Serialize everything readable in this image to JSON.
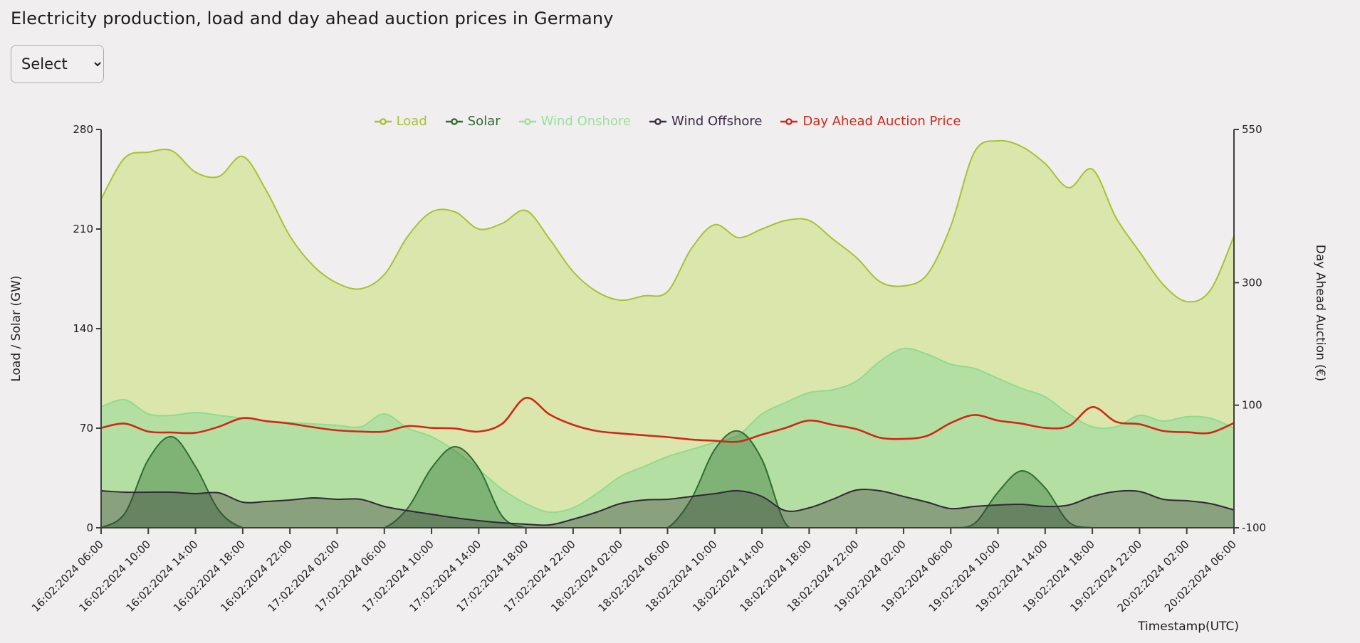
{
  "page": {
    "title": "Electricity production, load and day ahead auction prices in Germany"
  },
  "controls": {
    "select_value": "Select",
    "select_options": [
      "Select"
    ]
  },
  "chart_data": {
    "type": "area",
    "title": "Electricity production, load and day ahead auction prices in Germany",
    "xlabel": "Timestamp(UTC)",
    "x_start": "16:02:2024 06:00",
    "x_end": "20:02:2024 06:00",
    "x_step_hours_between_points": 2,
    "x_total_hours": 96,
    "x_tick_labels": [
      "16:02:2024 06:00",
      "16:02:2024 10:00",
      "16:02:2024 14:00",
      "16:02:2024 18:00",
      "16:02:2024 22:00",
      "17:02:2024 02:00",
      "17:02:2024 06:00",
      "17:02:2024 10:00",
      "17:02:2024 14:00",
      "17:02:2024 18:00",
      "17:02:2024 22:00",
      "18:02:2024 02:00",
      "18:02:2024 06:00",
      "18:02:2024 10:00",
      "18:02:2024 14:00",
      "18:02:2024 18:00",
      "18:02:2024 22:00",
      "19:02:2024 02:00",
      "19:02:2024 06:00",
      "19:02:2024 10:00",
      "19:02:2024 14:00",
      "19:02:2024 18:00",
      "19:02:2024 22:00",
      "20:02:2024 02:00",
      "20:02:2024 06:00"
    ],
    "left_axis": {
      "label": "Load / Solar (GW)",
      "range": [
        0,
        280
      ],
      "ticks": [
        0,
        70,
        140,
        210,
        280
      ]
    },
    "right_axis": {
      "label": "Day Ahead Auction (€)",
      "range": [
        -100,
        550
      ],
      "ticks": [
        -100,
        100,
        300,
        550
      ]
    },
    "legend_position": "top-center",
    "grid": false,
    "colors": {
      "background": "#f0eeef",
      "axis": "#3f3f3f",
      "load": "#a6c32f",
      "solar": "#2f6d33",
      "wind_onshore": "#8edc8e",
      "wind_offshore": "#33253a",
      "price": "#d02818"
    },
    "series": [
      {
        "name": "Load",
        "axis": "left",
        "kind": "area",
        "stroke": "#a6c32f",
        "fill": "rgba(198,222,107,0.5)",
        "legend_color": "#a6c32f",
        "values": [
          231,
          260,
          264,
          265,
          250,
          247,
          261,
          237,
          205,
          184,
          172,
          168,
          178,
          205,
          222,
          222,
          210,
          214,
          223,
          203,
          180,
          166,
          160,
          163,
          166,
          196,
          213,
          204,
          210,
          216,
          216,
          203,
          190,
          173,
          170,
          178,
          212,
          264,
          272,
          268,
          256,
          239,
          252,
          218,
          194,
          171,
          159,
          167,
          205
        ]
      },
      {
        "name": "Wind Onshore",
        "axis": "left",
        "kind": "area",
        "stroke": "#8edc8e",
        "fill": "rgba(132,215,148,0.45)",
        "legend_color": "#9ce09c",
        "values": [
          85,
          90,
          80,
          79,
          81,
          79,
          77,
          75,
          74,
          73,
          72,
          71,
          80,
          70,
          64,
          54,
          41,
          27,
          17,
          11,
          14,
          24,
          36,
          43,
          50,
          55,
          60,
          65,
          80,
          88,
          95,
          97,
          103,
          117,
          126,
          122,
          115,
          112,
          105,
          98,
          92,
          80,
          71,
          71,
          79,
          75,
          78,
          77,
          70
        ]
      },
      {
        "name": "Solar",
        "axis": "left",
        "kind": "area",
        "stroke": "#2f6d33",
        "fill": "rgba(47,109,51,0.4)",
        "legend_color": "#2f6d33",
        "values": [
          0,
          10,
          48,
          64,
          43,
          12,
          0,
          0,
          0,
          0,
          0,
          0,
          0,
          14,
          42,
          57,
          42,
          8,
          0,
          0,
          0,
          0,
          0,
          0,
          0,
          20,
          55,
          68,
          48,
          3,
          0,
          0,
          0,
          0,
          0,
          0,
          0,
          3,
          25,
          40,
          28,
          4,
          0,
          0,
          0,
          0,
          0,
          0,
          0
        ]
      },
      {
        "name": "Wind Offshore",
        "axis": "left",
        "kind": "area",
        "stroke": "#33253a",
        "fill": "rgba(60,45,60,0.35)",
        "legend_color": "#3a2a45",
        "values": [
          26,
          25,
          25,
          25,
          24,
          24.5,
          18,
          18.5,
          19.5,
          21,
          20,
          20,
          15,
          12,
          9.5,
          7,
          5,
          3.5,
          2.5,
          2,
          6,
          11,
          17,
          19.5,
          20,
          22,
          24,
          26,
          22,
          12,
          14,
          20,
          26.5,
          26,
          22,
          18,
          13.5,
          15,
          16,
          16.5,
          15,
          16,
          22,
          25.5,
          25.5,
          20,
          19,
          17,
          12.5
        ]
      },
      {
        "name": "Day Ahead Auction Price",
        "axis": "right",
        "kind": "line",
        "stroke": "#d02818",
        "fill": "none",
        "legend_color": "#d02818",
        "values": [
          63,
          70,
          57,
          55.5,
          55,
          65,
          79,
          74,
          70,
          64,
          59,
          57,
          57,
          66,
          63,
          62,
          57,
          70,
          112,
          85,
          68,
          58,
          54,
          51,
          48,
          44,
          42,
          40.5,
          52,
          63,
          75,
          68,
          61,
          47,
          45,
          50,
          71,
          84,
          75,
          70,
          63,
          66,
          97,
          73,
          69,
          58,
          56,
          55,
          71
        ]
      }
    ],
    "legend_order": [
      "Load",
      "Solar",
      "Wind Onshore",
      "Wind Offshore",
      "Day Ahead Auction Price"
    ]
  }
}
